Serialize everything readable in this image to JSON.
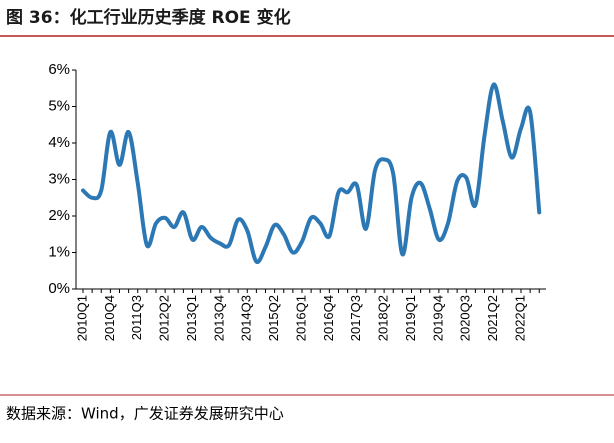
{
  "chart_data": {
    "type": "line",
    "title": "图 36：化工行业历史季度 ROE 变化",
    "source": "数据来源：Wind，广发证券发展研究中心",
    "categories": [
      "2010Q1",
      null,
      null,
      "2010Q4",
      null,
      null,
      "2011Q3",
      null,
      null,
      "2012Q2",
      null,
      null,
      "2013Q1",
      null,
      null,
      "2013Q4",
      null,
      null,
      "2014Q3",
      null,
      null,
      "2015Q2",
      null,
      null,
      "2016Q1",
      null,
      null,
      "2016Q4",
      null,
      null,
      "2017Q3",
      null,
      null,
      "2018Q2",
      null,
      null,
      "2019Q1",
      null,
      null,
      "2019Q4",
      null,
      null,
      "2020Q3",
      null,
      null,
      "2021Q2",
      null,
      null,
      "2022Q1",
      null,
      null
    ],
    "series": [
      {
        "name": "ROE",
        "color": "#2b78b5",
        "values": [
          2.7,
          2.5,
          2.7,
          4.3,
          3.4,
          4.3,
          2.9,
          1.2,
          1.8,
          1.95,
          1.7,
          2.1,
          1.35,
          1.7,
          1.4,
          1.25,
          1.2,
          1.9,
          1.6,
          0.75,
          1.15,
          1.75,
          1.5,
          1.0,
          1.3,
          1.95,
          1.8,
          1.45,
          2.65,
          2.65,
          2.85,
          1.65,
          3.25,
          3.55,
          3.15,
          0.95,
          2.5,
          2.9,
          2.2,
          1.35,
          1.8,
          2.95,
          3.05,
          2.3,
          4.2,
          5.6,
          4.6,
          3.6,
          4.4,
          4.85,
          2.1
        ]
      }
    ],
    "ylim": [
      0,
      6
    ],
    "yticks": [
      {
        "value": 0,
        "label": "0%"
      },
      {
        "value": 1,
        "label": "1%"
      },
      {
        "value": 2,
        "label": "2%"
      },
      {
        "value": 3,
        "label": "3%"
      },
      {
        "value": 4,
        "label": "4%"
      },
      {
        "value": 5,
        "label": "5%"
      },
      {
        "value": 6,
        "label": "6%"
      }
    ],
    "grid": false
  }
}
